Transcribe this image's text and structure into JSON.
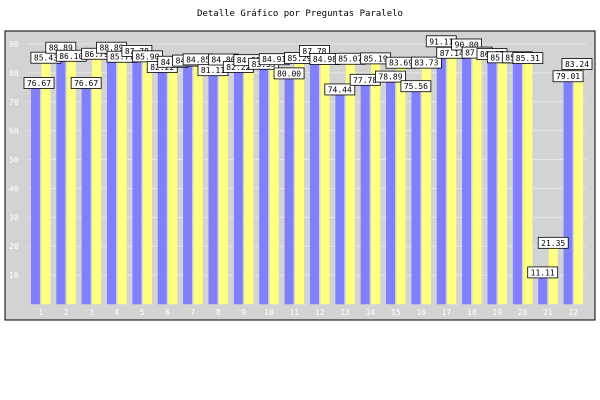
{
  "chart_data": {
    "type": "bar",
    "title": "Detalle Gráfico por Preguntas Paralelo",
    "xlabel": "",
    "ylabel": "",
    "ylim": [
      0,
      90
    ],
    "yticks": [
      10,
      20,
      30,
      40,
      50,
      60,
      70,
      80,
      90
    ],
    "grid": true,
    "categories": [
      "1",
      "2",
      "3",
      "4",
      "5",
      "6",
      "7",
      "8",
      "9",
      "10",
      "11",
      "12",
      "13",
      "14",
      "15",
      "16",
      "17",
      "18",
      "19",
      "20",
      "21",
      "22"
    ],
    "series": [
      {
        "name": "Serie 1",
        "color": "#8080ff",
        "values": [
          76.67,
          88.89,
          76.67,
          88.89,
          87.78,
          82.22,
          84.44,
          81.11,
          82.22,
          83.33,
          80.0,
          87.78,
          74.44,
          77.78,
          78.89,
          75.56,
          91.11,
          90.0,
          86.67,
          85.56,
          11.11,
          79.01
        ]
      },
      {
        "name": "Serie 2",
        "color": "#ffff80",
        "values": [
          85.43,
          86.1,
          86.79,
          85.77,
          85.9,
          84.02,
          84.85,
          84.8,
          84.57,
          84.91,
          85.29,
          84.98,
          85.07,
          85.19,
          83.69,
          83.73,
          87.14,
          87.19,
          85.56,
          85.31,
          21.35,
          83.24
        ]
      }
    ],
    "data_labels": [
      {
        "category": "1",
        "series": 0,
        "text": "76.67"
      },
      {
        "category": "1",
        "series": 1,
        "text": "85.43"
      },
      {
        "category": "2",
        "series": 0,
        "text": "88.89"
      },
      {
        "category": "2",
        "series": 1,
        "text": "86.10"
      },
      {
        "category": "3",
        "series": 0,
        "text": "76.67"
      },
      {
        "category": "3",
        "series": 1,
        "text": "86.79"
      },
      {
        "category": "4",
        "series": 0,
        "text": "88.89"
      },
      {
        "category": "4",
        "series": 1,
        "text": "85.77"
      },
      {
        "category": "5",
        "series": 0,
        "text": "87.78"
      },
      {
        "category": "5",
        "series": 1,
        "text": "85.90"
      },
      {
        "category": "6",
        "series": 0,
        "text": "82.22"
      },
      {
        "category": "6",
        "series": 1,
        "text": "84.02"
      },
      {
        "category": "7",
        "series": 0,
        "text": "84.44"
      },
      {
        "category": "7",
        "series": 1,
        "text": "84.85"
      },
      {
        "category": "8",
        "series": 0,
        "text": "81.11"
      },
      {
        "category": "8",
        "series": 1,
        "text": "84.80"
      },
      {
        "category": "9",
        "series": 0,
        "text": "82.22"
      },
      {
        "category": "9",
        "series": 1,
        "text": "84.57"
      },
      {
        "category": "10",
        "series": 0,
        "text": "83.33"
      },
      {
        "category": "10",
        "series": 1,
        "text": "84.91"
      },
      {
        "category": "11",
        "series": 0,
        "text": "80.00"
      },
      {
        "category": "11",
        "series": 1,
        "text": "85.29"
      },
      {
        "category": "12",
        "series": 0,
        "text": "87.78"
      },
      {
        "category": "12",
        "series": 1,
        "text": "84.98"
      },
      {
        "category": "13",
        "series": 0,
        "text": "74.44"
      },
      {
        "category": "13",
        "series": 1,
        "text": "85.07"
      },
      {
        "category": "14",
        "series": 0,
        "text": "77.78"
      },
      {
        "category": "14",
        "series": 1,
        "text": "85.19"
      },
      {
        "category": "15",
        "series": 0,
        "text": "78.89"
      },
      {
        "category": "15",
        "series": 1,
        "text": "83.69"
      },
      {
        "category": "16",
        "series": 0,
        "text": "75.56"
      },
      {
        "category": "16",
        "series": 1,
        "text": "83.73"
      },
      {
        "category": "17",
        "series": 0,
        "text": "91.11"
      },
      {
        "category": "17",
        "series": 1,
        "text": "87.14"
      },
      {
        "category": "18",
        "series": 0,
        "text": "90.00"
      },
      {
        "category": "18",
        "series": 1,
        "text": "87.19"
      },
      {
        "category": "19",
        "series": 0,
        "text": "86.67"
      },
      {
        "category": "19",
        "series": 1,
        "text": "85.56"
      },
      {
        "category": "20",
        "series": 0,
        "text": "85.56"
      },
      {
        "category": "20",
        "series": 1,
        "text": "85.31"
      },
      {
        "category": "21",
        "series": 0,
        "text": "11.11"
      },
      {
        "category": "21",
        "series": 1,
        "text": "21.35"
      },
      {
        "category": "22",
        "series": 0,
        "text": "79.01"
      },
      {
        "category": "22",
        "series": 1,
        "text": "83.24"
      }
    ],
    "colors": {
      "plot_background": "#d3d3d3",
      "frame": "#000000",
      "grid": "#e6e6e6",
      "tick_text": "#ffffff"
    }
  }
}
